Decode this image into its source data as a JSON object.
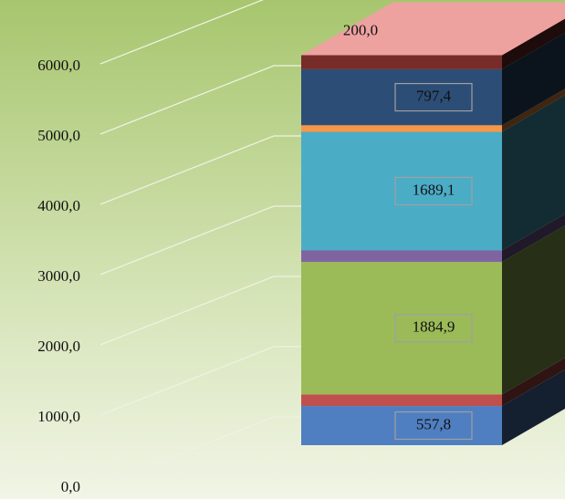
{
  "chart_data": {
    "type": "bar3d-stacked",
    "ylim": [
      0,
      6000
    ],
    "yticks": [
      {
        "value": 0,
        "label": "0,0"
      },
      {
        "value": 1000,
        "label": "1000,0"
      },
      {
        "value": 2000,
        "label": "2000,0"
      },
      {
        "value": 3000,
        "label": "3000,0"
      },
      {
        "value": 4000,
        "label": "4000,0"
      },
      {
        "value": 5000,
        "label": "5000,0"
      },
      {
        "value": 6000,
        "label": "6000,0"
      }
    ],
    "grid": true,
    "series": [
      {
        "color": "#4f7fc0",
        "values": [
          557.8
        ],
        "value_labels": [
          "557,8"
        ]
      },
      {
        "color": "#c0504d",
        "values": [
          166.0
        ],
        "value_labels": [
          "166,0"
        ]
      },
      {
        "color": "#9bbb59",
        "values": [
          1884.9
        ],
        "value_labels": [
          "1884,9"
        ]
      },
      {
        "color": "#8064a2",
        "values": [
          164.0
        ],
        "value_labels": [
          "164,0"
        ]
      },
      {
        "color": "#4bacc6",
        "values": [
          1689.1
        ],
        "value_labels": [
          "1689,1"
        ]
      },
      {
        "color": "#f79646",
        "values": [
          93.1
        ],
        "value_labels": [
          "93,1"
        ]
      },
      {
        "color": "#2c4d75",
        "values": [
          797.4
        ],
        "value_labels": [
          "797,4"
        ]
      },
      {
        "color": "#772c2a",
        "values": [
          200.0
        ],
        "value_labels": [
          "200,0"
        ]
      }
    ]
  }
}
